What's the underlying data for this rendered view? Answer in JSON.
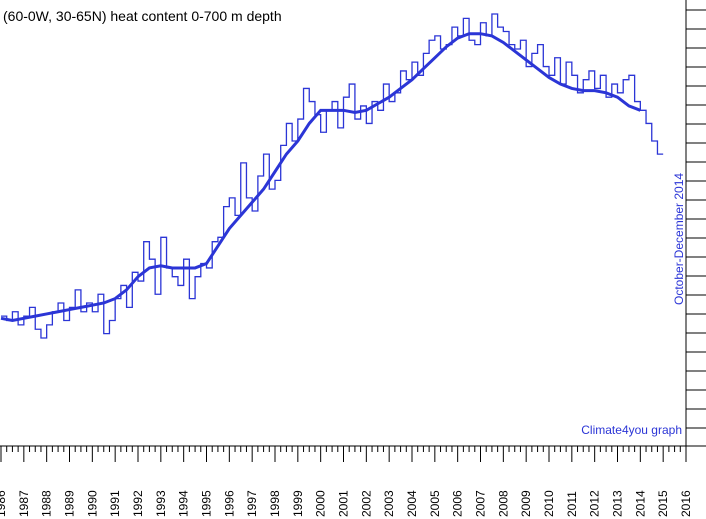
{
  "chart_data": {
    "type": "line",
    "title": "(60-0W, 30-65N) heat content 0-700 m depth",
    "period_label": "October-December 2014",
    "credit": "Climate4you graph",
    "xlim": [
      1986,
      2016
    ],
    "x_ticks": [
      "1986",
      "1987",
      "1988",
      "1989",
      "1990",
      "1991",
      "1992",
      "1993",
      "1994",
      "1995",
      "1996",
      "1997",
      "1998",
      "1999",
      "2000",
      "2001",
      "2002",
      "2003",
      "2004",
      "2005",
      "2006",
      "2007",
      "2008",
      "2009",
      "2010",
      "2011",
      "2012",
      "2013",
      "2014",
      "2015",
      "2016"
    ],
    "ylim": [
      0,
      1
    ],
    "grid": false,
    "colors": {
      "series": "#2b35d6",
      "text_blue": "#2b35d6",
      "axis": "#000000"
    },
    "series": [
      {
        "style": "quarterly-step",
        "x": [
          1986.0,
          1986.25,
          1986.5,
          1986.75,
          1987.0,
          1987.25,
          1987.5,
          1987.75,
          1988.0,
          1988.25,
          1988.5,
          1988.75,
          1989.0,
          1989.25,
          1989.5,
          1989.75,
          1990.0,
          1990.25,
          1990.5,
          1990.75,
          1991.0,
          1991.25,
          1991.5,
          1991.75,
          1992.0,
          1992.25,
          1992.5,
          1992.75,
          1993.0,
          1993.25,
          1993.5,
          1993.75,
          1994.0,
          1994.25,
          1994.5,
          1994.75,
          1995.0,
          1995.25,
          1995.5,
          1995.75,
          1996.0,
          1996.25,
          1996.5,
          1996.75,
          1997.0,
          1997.25,
          1997.5,
          1997.75,
          1998.0,
          1998.25,
          1998.5,
          1998.75,
          1999.0,
          1999.25,
          1999.5,
          1999.75,
          2000.0,
          2000.25,
          2000.5,
          2000.75,
          2001.0,
          2001.25,
          2001.5,
          2001.75,
          2002.0,
          2002.25,
          2002.5,
          2002.75,
          2003.0,
          2003.25,
          2003.5,
          2003.75,
          2004.0,
          2004.25,
          2004.5,
          2004.75,
          2005.0,
          2005.25,
          2005.5,
          2005.75,
          2006.0,
          2006.25,
          2006.5,
          2006.75,
          2007.0,
          2007.25,
          2007.5,
          2007.75,
          2008.0,
          2008.25,
          2008.5,
          2008.75,
          2009.0,
          2009.25,
          2009.5,
          2009.75,
          2010.0,
          2010.25,
          2010.5,
          2010.75,
          2011.0,
          2011.25,
          2011.5,
          2011.75,
          2012.0,
          2012.25,
          2012.5,
          2012.75,
          2013.0,
          2013.25,
          2013.5,
          2013.75,
          2014.0,
          2014.25,
          2014.5,
          2014.75
        ],
        "y": [
          0.35,
          0.34,
          0.36,
          0.33,
          0.35,
          0.37,
          0.32,
          0.3,
          0.33,
          0.36,
          0.38,
          0.34,
          0.37,
          0.41,
          0.36,
          0.38,
          0.36,
          0.4,
          0.31,
          0.34,
          0.39,
          0.42,
          0.37,
          0.45,
          0.43,
          0.52,
          0.48,
          0.4,
          0.53,
          0.46,
          0.44,
          0.42,
          0.48,
          0.39,
          0.44,
          0.47,
          0.46,
          0.52,
          0.53,
          0.6,
          0.62,
          0.58,
          0.7,
          0.62,
          0.59,
          0.67,
          0.72,
          0.64,
          0.66,
          0.74,
          0.79,
          0.75,
          0.8,
          0.87,
          0.84,
          0.81,
          0.77,
          0.82,
          0.84,
          0.78,
          0.85,
          0.88,
          0.8,
          0.83,
          0.79,
          0.84,
          0.82,
          0.88,
          0.84,
          0.86,
          0.91,
          0.89,
          0.93,
          0.9,
          0.95,
          0.98,
          0.99,
          0.96,
          0.97,
          1.01,
          0.99,
          1.03,
          0.98,
          0.97,
          1.02,
          0.99,
          1.04,
          1.01,
          1.0,
          0.97,
          0.96,
          0.98,
          0.92,
          0.95,
          0.97,
          0.92,
          0.9,
          0.94,
          0.88,
          0.93,
          0.9,
          0.86,
          0.89,
          0.91,
          0.87,
          0.9,
          0.85,
          0.88,
          0.86,
          0.89,
          0.9,
          0.84,
          0.82,
          0.79,
          0.75,
          0.72
        ]
      },
      {
        "style": "running-mean",
        "x": [
          1986.0,
          1986.5,
          1987.0,
          1987.5,
          1988.0,
          1988.5,
          1989.0,
          1989.5,
          1990.0,
          1990.5,
          1991.0,
          1991.5,
          1992.0,
          1992.5,
          1993.0,
          1993.5,
          1994.0,
          1994.5,
          1995.0,
          1995.5,
          1996.0,
          1996.5,
          1997.0,
          1997.5,
          1998.0,
          1998.5,
          1999.0,
          1999.5,
          2000.0,
          2000.5,
          2001.0,
          2001.5,
          2002.0,
          2002.5,
          2003.0,
          2003.5,
          2004.0,
          2004.5,
          2005.0,
          2005.5,
          2006.0,
          2006.5,
          2007.0,
          2007.5,
          2008.0,
          2008.5,
          2009.0,
          2009.5,
          2010.0,
          2010.5,
          2011.0,
          2011.5,
          2012.0,
          2012.5,
          2013.0,
          2013.5,
          2014.0
        ],
        "y": [
          0.345,
          0.34,
          0.345,
          0.35,
          0.355,
          0.36,
          0.365,
          0.37,
          0.375,
          0.38,
          0.39,
          0.41,
          0.44,
          0.46,
          0.465,
          0.46,
          0.46,
          0.46,
          0.47,
          0.51,
          0.55,
          0.58,
          0.61,
          0.64,
          0.68,
          0.72,
          0.75,
          0.79,
          0.82,
          0.82,
          0.82,
          0.815,
          0.82,
          0.835,
          0.85,
          0.87,
          0.89,
          0.915,
          0.94,
          0.965,
          0.985,
          0.995,
          0.995,
          0.99,
          0.975,
          0.955,
          0.935,
          0.915,
          0.895,
          0.88,
          0.87,
          0.865,
          0.865,
          0.86,
          0.85,
          0.83,
          0.82
        ]
      }
    ]
  }
}
